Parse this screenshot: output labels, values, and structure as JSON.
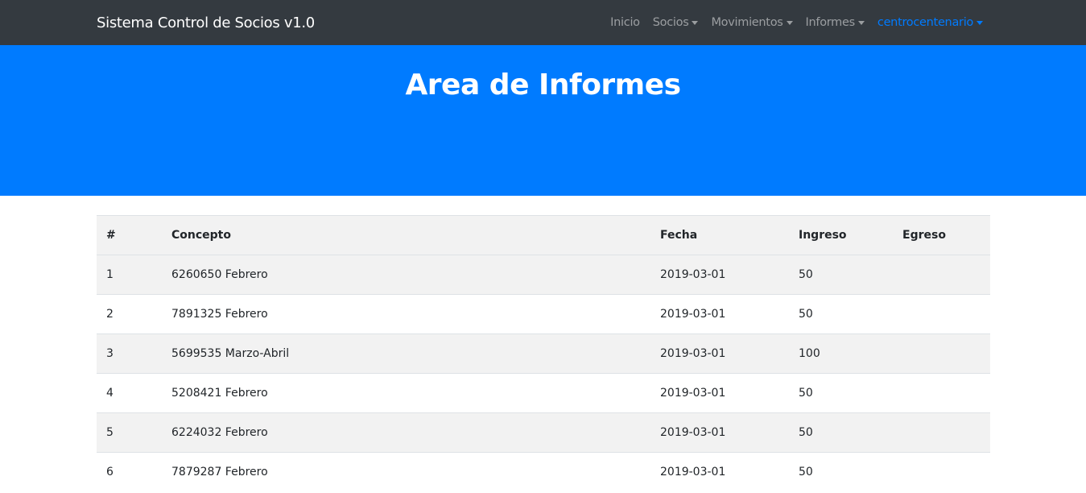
{
  "navbar": {
    "brand": "Sistema Control de Socios v1.0",
    "items": [
      {
        "label": "Inicio",
        "dropdown": false
      },
      {
        "label": "Socios",
        "dropdown": true
      },
      {
        "label": "Movimientos",
        "dropdown": true
      },
      {
        "label": "Informes",
        "dropdown": true
      },
      {
        "label": "centrocentenario",
        "dropdown": true,
        "active": true
      }
    ]
  },
  "hero": {
    "title": "Area de Informes"
  },
  "table": {
    "headers": [
      "#",
      "Concepto",
      "Fecha",
      "Ingreso",
      "Egreso"
    ],
    "rows": [
      [
        "1",
        "6260650 Febrero",
        "2019-03-01",
        "50",
        ""
      ],
      [
        "2",
        "7891325 Febrero",
        "2019-03-01",
        "50",
        ""
      ],
      [
        "3",
        "5699535 Marzo-Abril",
        "2019-03-01",
        "100",
        ""
      ],
      [
        "4",
        "5208421 Febrero",
        "2019-03-01",
        "50",
        ""
      ],
      [
        "5",
        "6224032 Febrero",
        "2019-03-01",
        "50",
        ""
      ],
      [
        "6",
        "7879287 Febrero",
        "2019-03-01",
        "50",
        ""
      ]
    ]
  },
  "colors": {
    "navbar": "#343a40",
    "primary": "#007bff",
    "stripe": "#f2f2f2"
  }
}
